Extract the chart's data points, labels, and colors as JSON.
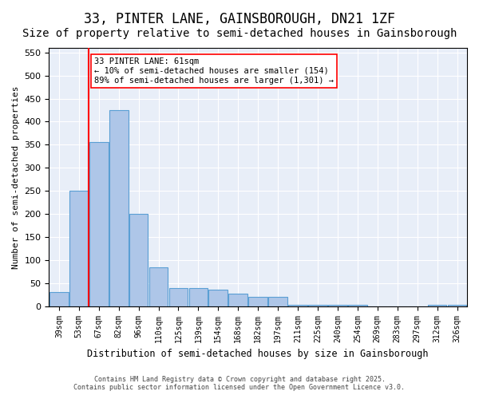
{
  "title": "33, PINTER LANE, GAINSBOROUGH, DN21 1ZF",
  "subtitle": "Size of property relative to semi-detached houses in Gainsborough",
  "xlabel": "Distribution of semi-detached houses by size in Gainsborough",
  "ylabel": "Number of semi-detached properties",
  "categories": [
    "39sqm",
    "53sqm",
    "67sqm",
    "82sqm",
    "96sqm",
    "110sqm",
    "125sqm",
    "139sqm",
    "154sqm",
    "168sqm",
    "182sqm",
    "197sqm",
    "211sqm",
    "225sqm",
    "240sqm",
    "254sqm",
    "269sqm",
    "283sqm",
    "297sqm",
    "312sqm",
    "326sqm"
  ],
  "values": [
    30,
    250,
    355,
    425,
    200,
    85,
    40,
    40,
    35,
    28,
    20,
    20,
    3,
    3,
    3,
    3,
    0,
    0,
    0,
    3,
    3
  ],
  "bar_color": "#aec6e8",
  "bar_edge_color": "#5a9fd4",
  "red_line_x": 1,
  "red_line_label": "33 PINTER LANE: 61sqm",
  "annotation_line1": "33 PINTER LANE: 61sqm",
  "annotation_line2": "← 10% of semi-detached houses are smaller (154)",
  "annotation_line3": "89% of semi-detached houses are larger (1,301) →",
  "ylim": [
    0,
    560
  ],
  "yticks": [
    0,
    50,
    100,
    150,
    200,
    250,
    300,
    350,
    400,
    450,
    500,
    550
  ],
  "background_color": "#e8eef8",
  "footer_line1": "Contains HM Land Registry data © Crown copyright and database right 2025.",
  "footer_line2": "Contains public sector information licensed under the Open Government Licence v3.0.",
  "title_fontsize": 12,
  "subtitle_fontsize": 10
}
